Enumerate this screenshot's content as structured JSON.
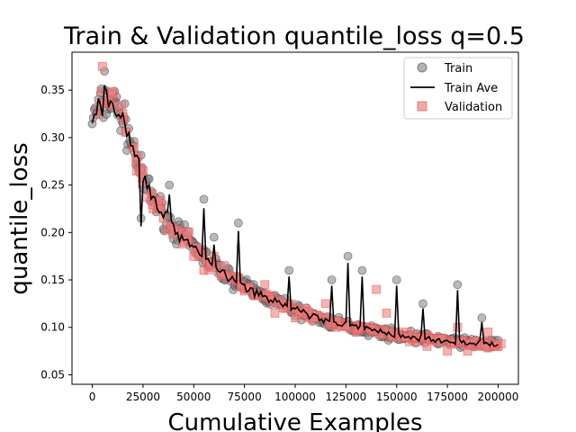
{
  "chart_data": {
    "type": "scatter",
    "title": "Train & Validation quantile_loss q=0.5",
    "xlabel": "Cumulative Examples",
    "ylabel": "quantile_loss",
    "xlim": [
      -10000,
      210000
    ],
    "ylim": [
      0.04,
      0.39
    ],
    "xticks": [
      0,
      25000,
      50000,
      75000,
      100000,
      125000,
      150000,
      175000,
      200000
    ],
    "yticks": [
      0.05,
      0.1,
      0.15,
      0.2,
      0.25,
      0.3,
      0.35
    ],
    "grid": false,
    "legend_position": "top-right",
    "series": [
      {
        "name": "Train",
        "marker": "circle",
        "color": "#808080",
        "note": "dense scatter of per-batch training loss sampled every ~500 examples"
      },
      {
        "name": "Train Ave",
        "marker": "line",
        "color": "#000000"
      },
      {
        "name": "Validation",
        "marker": "square",
        "color": "#f08080"
      }
    ],
    "trend": {
      "x": [
        0,
        5000,
        10000,
        15000,
        20000,
        25000,
        30000,
        40000,
        50000,
        60000,
        70000,
        80000,
        90000,
        100000,
        110000,
        120000,
        130000,
        140000,
        150000,
        160000,
        170000,
        180000,
        190000,
        200000
      ],
      "y": [
        0.32,
        0.335,
        0.34,
        0.32,
        0.29,
        0.255,
        0.235,
        0.205,
        0.185,
        0.165,
        0.15,
        0.138,
        0.128,
        0.118,
        0.11,
        0.104,
        0.1,
        0.096,
        0.092,
        0.089,
        0.087,
        0.085,
        0.083,
        0.082
      ]
    },
    "train_spikes": [
      {
        "x": 6000,
        "y": 0.37
      },
      {
        "x": 24000,
        "y": 0.215
      },
      {
        "x": 38000,
        "y": 0.25
      },
      {
        "x": 55000,
        "y": 0.235
      },
      {
        "x": 60000,
        "y": 0.195
      },
      {
        "x": 72000,
        "y": 0.21
      },
      {
        "x": 97000,
        "y": 0.16
      },
      {
        "x": 118000,
        "y": 0.15
      },
      {
        "x": 126000,
        "y": 0.175
      },
      {
        "x": 133000,
        "y": 0.16
      },
      {
        "x": 150000,
        "y": 0.15
      },
      {
        "x": 163000,
        "y": 0.125
      },
      {
        "x": 180000,
        "y": 0.145
      },
      {
        "x": 192000,
        "y": 0.11
      }
    ],
    "validation": {
      "x": [
        5000,
        10000,
        15000,
        20000,
        25000,
        30000,
        35000,
        40000,
        45000,
        50000,
        55000,
        60000,
        65000,
        70000,
        75000,
        80000,
        85000,
        90000,
        95000,
        100000,
        105000,
        110000,
        115000,
        120000,
        125000,
        130000,
        135000,
        140000,
        145000,
        150000,
        155000,
        160000,
        165000,
        170000,
        175000,
        180000,
        185000,
        190000,
        195000,
        200000
      ],
      "y": [
        0.375,
        0.345,
        0.325,
        0.29,
        0.265,
        0.225,
        0.215,
        0.205,
        0.19,
        0.175,
        0.16,
        0.175,
        0.165,
        0.15,
        0.14,
        0.135,
        0.145,
        0.115,
        0.12,
        0.11,
        0.12,
        0.11,
        0.125,
        0.1,
        0.105,
        0.095,
        0.1,
        0.14,
        0.115,
        0.09,
        0.095,
        0.085,
        0.08,
        0.085,
        0.075,
        0.1,
        0.075,
        0.08,
        0.095,
        0.08
      ]
    }
  }
}
